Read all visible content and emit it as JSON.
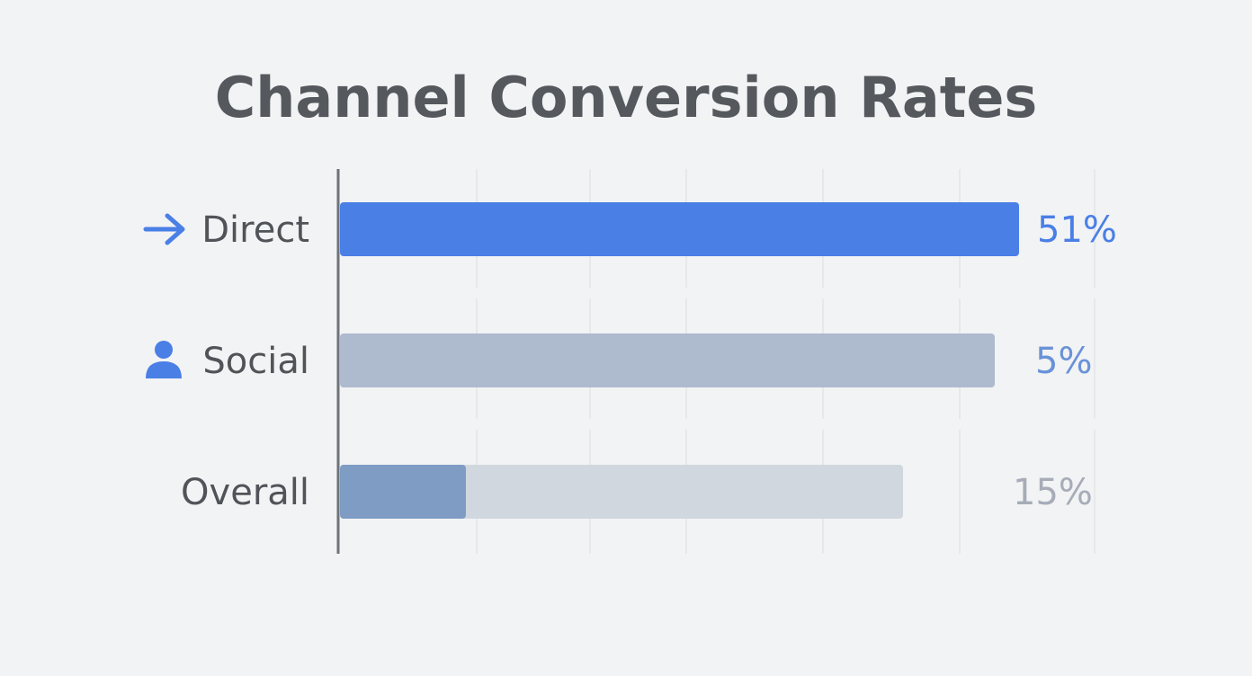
{
  "chart_data": {
    "type": "bar",
    "orientation": "horizontal",
    "title": "Channel Conversion Rates",
    "xlabel": "",
    "ylabel": "",
    "grid": true,
    "legend": "none",
    "categories": [
      {
        "label": "Direct",
        "value": 51,
        "value_label": "51%",
        "icon": "arrow-right-icon"
      },
      {
        "label": "Social",
        "value": 5,
        "value_label": "5%",
        "icon": "person-icon"
      },
      {
        "label": "Overall",
        "value": 15,
        "value_label": "15%",
        "icon": ""
      }
    ],
    "colors": {
      "title": "#55595e",
      "category_label": "#505459",
      "axis_line": "#6f7378",
      "grid_line": "#e2e4e7",
      "icon": "#4a7fe6",
      "bars": [
        "#4a7fe6",
        "#aebace",
        "#d1d7df"
      ],
      "overall_fill": "#7e9cc4",
      "value_labels": [
        "#4a7fe6",
        "#6a92d8",
        "#a7acb8"
      ]
    }
  }
}
